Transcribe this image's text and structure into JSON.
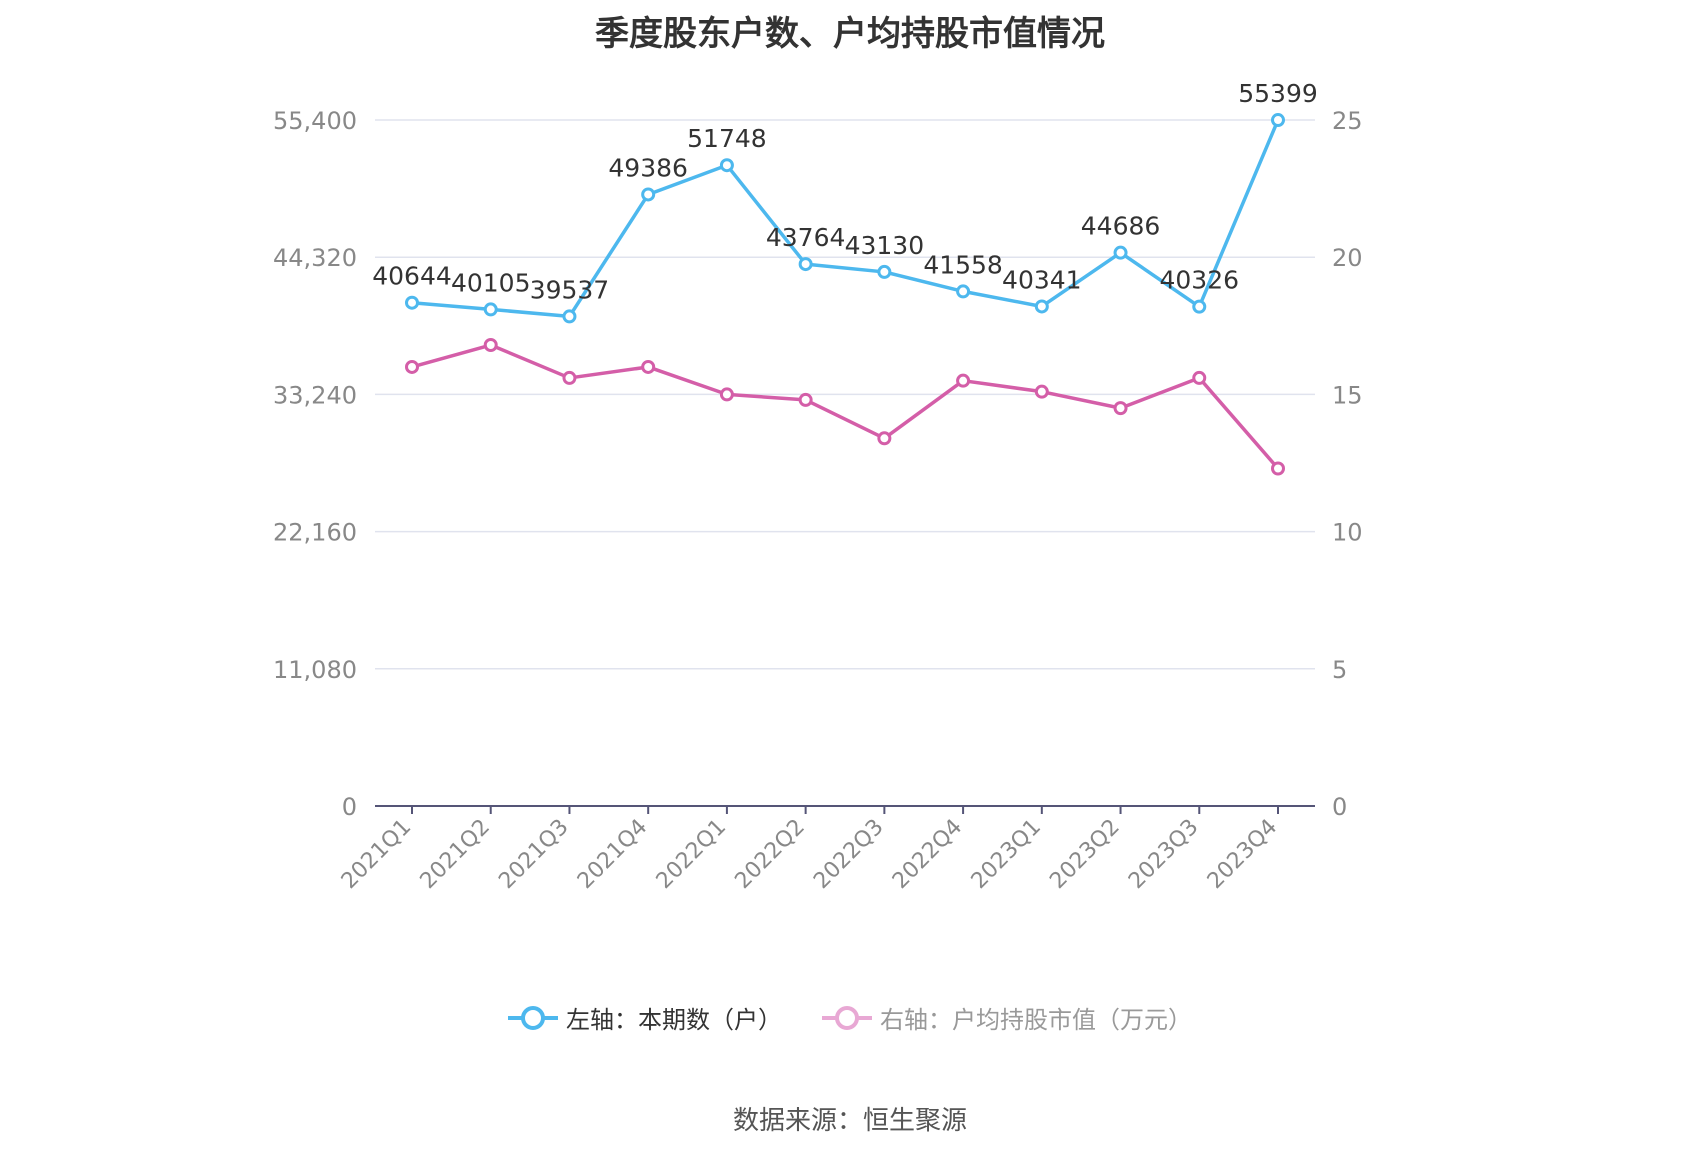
{
  "title": "季度股东户数、户均持股市值情况",
  "source": "数据来源：恒生聚源",
  "legend": [
    {
      "label": "左轴：本期数（户）",
      "color": "#5ab8ee"
    },
    {
      "label": "右轴：户均持股市值（万元）",
      "color": "#e8a8d4"
    }
  ],
  "chart_data": {
    "type": "line",
    "categories": [
      "2021Q1",
      "2021Q2",
      "2021Q3",
      "2021Q4",
      "2022Q1",
      "2022Q2",
      "2022Q3",
      "2022Q4",
      "2023Q1",
      "2023Q2",
      "2023Q3",
      "2023Q4"
    ],
    "left_axis": {
      "min": 0,
      "max": 55400,
      "ticks": [
        "0",
        "11,080",
        "22,160",
        "33,240",
        "44,320",
        "55,400"
      ]
    },
    "right_axis": {
      "min": 0,
      "max": 25,
      "ticks": [
        "0",
        "5",
        "10",
        "15",
        "20",
        "25"
      ]
    },
    "grid": true,
    "legend_position": "bottom",
    "series": [
      {
        "name": "左轴：本期数（户）",
        "axis": "left",
        "color": "#4db8ee",
        "values": [
          40644,
          40105,
          39537,
          49386,
          51748,
          43764,
          43130,
          41558,
          40341,
          44686,
          40326,
          55399
        ],
        "labels": [
          "40644",
          "40105",
          "39537",
          "49386",
          "51748",
          "43764",
          "43130",
          "41558",
          "40341",
          "44686",
          "40326",
          "55399"
        ]
      },
      {
        "name": "右轴：户均持股市值（万元）",
        "axis": "right",
        "color": "#d45ea8",
        "values": [
          16.0,
          16.8,
          15.6,
          16.0,
          15.0,
          14.8,
          13.4,
          15.5,
          15.1,
          14.5,
          15.6,
          12.3
        ]
      }
    ]
  }
}
